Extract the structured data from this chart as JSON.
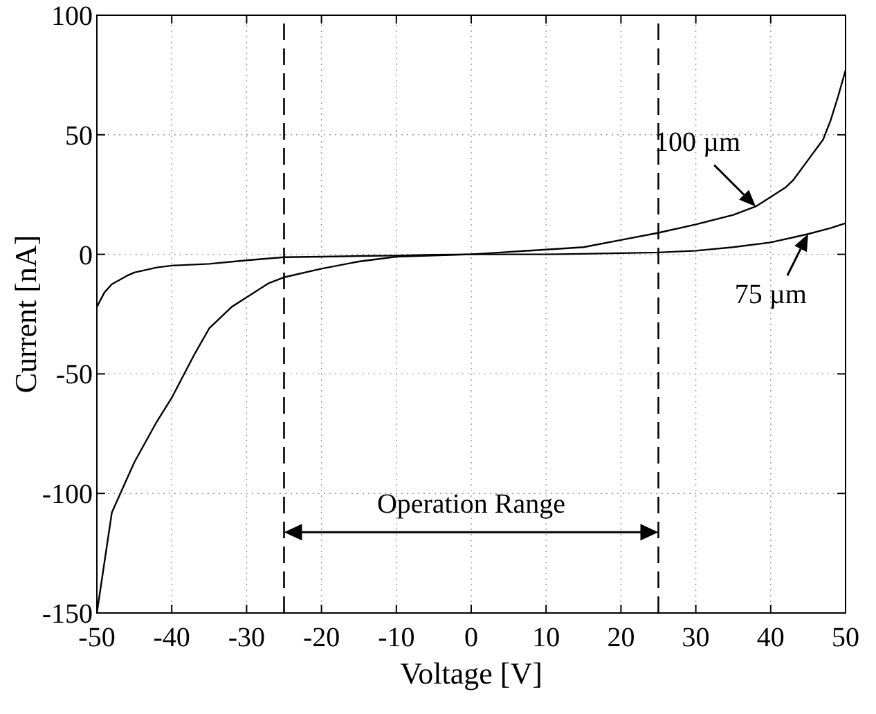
{
  "chart_data": {
    "type": "line",
    "xlabel": "Voltage [V]",
    "ylabel": "Current [nA]",
    "xlim": [
      -50,
      50
    ],
    "ylim": [
      -150,
      100
    ],
    "xticks": [
      -50,
      -40,
      -30,
      -20,
      -10,
      0,
      10,
      20,
      30,
      40,
      50
    ],
    "yticks": [
      -150,
      -100,
      -50,
      0,
      50,
      100
    ],
    "grid": true,
    "line_style": "solid",
    "marker": "none",
    "series": [
      {
        "name": "100 µm",
        "color": "#000000",
        "x": [
          -50,
          -48,
          -45,
          -42,
          -40,
          -37,
          -35,
          -32,
          -30,
          -27,
          -25,
          -20,
          -15,
          -10,
          -5,
          0,
          5,
          10,
          15,
          20,
          25,
          30,
          35,
          38,
          40,
          42,
          43,
          45,
          47,
          48,
          49,
          50
        ],
        "values": [
          -150,
          -108,
          -87,
          -70,
          -60,
          -42,
          -31,
          -22,
          -18,
          -12,
          -9.6,
          -6,
          -3,
          -1,
          -0.5,
          0,
          1,
          2,
          3,
          6,
          9,
          12.5,
          16.5,
          20,
          24,
          28,
          31,
          39.5,
          48,
          56,
          66,
          77
        ]
      },
      {
        "name": "75 µm",
        "color": "#000000",
        "x": [
          -50,
          -49,
          -48,
          -46,
          -45,
          -42,
          -40,
          -35,
          -30,
          -25,
          -20,
          -15,
          -10,
          -5,
          0,
          5,
          10,
          15,
          20,
          25,
          30,
          35,
          40,
          45,
          48,
          50
        ],
        "values": [
          -22,
          -16,
          -12.5,
          -9,
          -7.6,
          -5.5,
          -4.7,
          -4,
          -2.5,
          -1.2,
          -1,
          -0.7,
          -0.5,
          -0.2,
          0,
          0,
          0,
          0.2,
          0.5,
          0.8,
          1.5,
          3,
          5,
          8.5,
          11,
          13
        ]
      }
    ],
    "ref_lines": [
      {
        "axis": "x",
        "value": -25,
        "color": "#000000",
        "line_style": "dashed"
      },
      {
        "axis": "x",
        "value": 25,
        "color": "#000000",
        "line_style": "dashed"
      }
    ],
    "annotations": [
      "Operation Range"
    ]
  }
}
